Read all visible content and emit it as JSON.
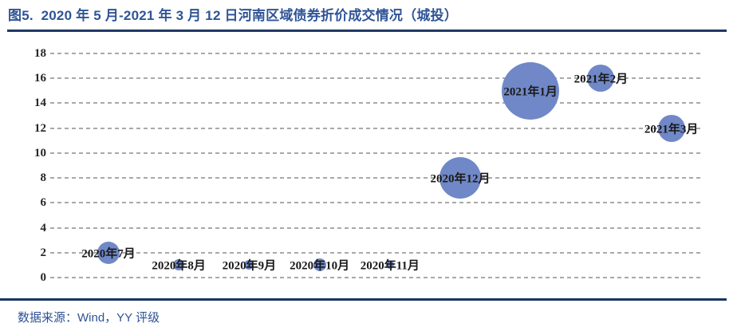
{
  "header": {
    "title": "图5.  2020 年 5 月-2021 年 3 月 12 日河南区域债券折价成交情况（城投）"
  },
  "footer": {
    "source": "数据来源：Wind，YY 评级"
  },
  "colors": {
    "title_text": "#2F5496",
    "rule": "#1F3864",
    "bubble": "#7088C7",
    "gridline": "#A9A9A9",
    "point_label": "#1A1A1A",
    "axis_tick": "#262626",
    "source_text": "#2E5395"
  },
  "chart_data": {
    "type": "scatter",
    "subtype": "bubble",
    "title": "2020年5月-2021年3月12日河南区域债券折价成交情况（城投）",
    "xlabel": "",
    "ylabel": "",
    "ylim": [
      0,
      18
    ],
    "yticks": [
      0,
      2,
      4,
      6,
      8,
      10,
      12,
      14,
      16,
      18
    ],
    "grid": "horizontal-dashed",
    "legend": "none",
    "points": [
      {
        "label": "2020年7月",
        "y": 2,
        "bubble_radius_px": 14
      },
      {
        "label": "2020年8月",
        "y": 1,
        "bubble_radius_px": 7
      },
      {
        "label": "2020年9月",
        "y": 1,
        "bubble_radius_px": 6
      },
      {
        "label": "2020年10月",
        "y": 1,
        "bubble_radius_px": 8
      },
      {
        "label": "2020年11月",
        "y": 1,
        "bubble_radius_px": 5
      },
      {
        "label": "2020年12月",
        "y": 8,
        "bubble_radius_px": 26
      },
      {
        "label": "2021年1月",
        "y": 15,
        "bubble_radius_px": 36
      },
      {
        "label": "2021年2月",
        "y": 16,
        "bubble_radius_px": 17
      },
      {
        "label": "2021年3月",
        "y": 12,
        "bubble_radius_px": 17
      }
    ]
  }
}
